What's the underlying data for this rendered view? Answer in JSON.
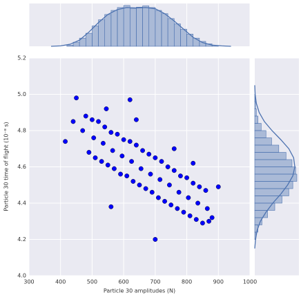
{
  "chart_data": [
    {
      "type": "scatter",
      "x_label": "Particle 30 amplitudes (N)",
      "y_label": "Particle 30 time of flight (10⁻⁸ s)",
      "x": [
        480,
        500,
        520,
        540,
        560,
        580,
        600,
        620,
        640,
        660,
        680,
        700,
        720,
        740,
        760,
        780,
        800,
        820,
        840,
        860,
        490,
        510,
        530,
        550,
        570,
        590,
        610,
        630,
        650,
        670,
        690,
        710,
        730,
        750,
        770,
        790,
        810,
        830,
        850,
        870,
        470,
        505,
        535,
        565,
        595,
        625,
        655,
        685,
        715,
        745,
        775,
        805,
        835,
        865,
        415,
        450,
        620,
        700,
        900,
        880,
        440,
        560,
        760,
        545,
        640,
        820
      ],
      "y": [
        4.88,
        4.86,
        4.85,
        4.82,
        4.79,
        4.78,
        4.75,
        4.74,
        4.72,
        4.69,
        4.67,
        4.65,
        4.63,
        4.6,
        4.58,
        4.55,
        4.54,
        4.51,
        4.49,
        4.47,
        4.68,
        4.65,
        4.63,
        4.61,
        4.59,
        4.56,
        4.55,
        4.52,
        4.5,
        4.48,
        4.46,
        4.43,
        4.41,
        4.39,
        4.37,
        4.35,
        4.33,
        4.31,
        4.29,
        4.3,
        4.8,
        4.76,
        4.73,
        4.69,
        4.66,
        4.63,
        4.59,
        4.56,
        4.53,
        4.5,
        4.46,
        4.43,
        4.4,
        4.37,
        4.74,
        4.98,
        4.97,
        4.2,
        4.49,
        4.32,
        4.85,
        4.38,
        4.7,
        4.92,
        4.86,
        4.62
      ],
      "color": "#0000ff",
      "edgecolor": "#000000",
      "xlim": [
        300,
        1000
      ],
      "xticks": [
        300,
        400,
        500,
        600,
        700,
        800,
        900,
        1000
      ],
      "ylim": [
        4,
        5.2
      ],
      "yticks": [
        {
          "value": 4,
          "label": "4.0"
        },
        4.2,
        4.4,
        4.6,
        4.8,
        {
          "value": 5,
          "label": "5.0"
        },
        5.2
      ],
      "grid": true
    },
    {
      "type": "histogram",
      "orientation": "vertical",
      "color": "#4c72b0",
      "bins": [
        420,
        440,
        460,
        480,
        500,
        520,
        540,
        560,
        580,
        600,
        620,
        640,
        660,
        680,
        700,
        720,
        740,
        760,
        780,
        800,
        820,
        840,
        860,
        880,
        900
      ],
      "counts": [
        3,
        10,
        20,
        32,
        50,
        65,
        78,
        88,
        95,
        100,
        93,
        96,
        99,
        95,
        88,
        80,
        68,
        55,
        42,
        30,
        20,
        12,
        6,
        2
      ],
      "kde_x": [
        370,
        400,
        430,
        460,
        490,
        520,
        550,
        580,
        610,
        640,
        670,
        700,
        730,
        760,
        790,
        820,
        850,
        880,
        910,
        940
      ],
      "kde_values": [
        0,
        1,
        5,
        15,
        35,
        58,
        78,
        90,
        95,
        94,
        95,
        92,
        80,
        62,
        42,
        22,
        9,
        3,
        1,
        0
      ]
    },
    {
      "type": "histogram",
      "orientation": "horizontal",
      "color": "#4c72b0",
      "bins": [
        4.2,
        4.24,
        4.28,
        4.32,
        4.36,
        4.4,
        4.44,
        4.48,
        4.52,
        4.56,
        4.6,
        4.64,
        4.68,
        4.72,
        4.76,
        4.8,
        4.84,
        4.88,
        4.92,
        4.96,
        5.0
      ],
      "counts": [
        3,
        8,
        18,
        32,
        50,
        68,
        85,
        95,
        105,
        102,
        93,
        78,
        60,
        42,
        28,
        16,
        8,
        4,
        2,
        1
      ],
      "kde_x": [
        4.15,
        4.2,
        4.25,
        4.3,
        4.35,
        4.4,
        4.45,
        4.5,
        4.55,
        4.6,
        4.65,
        4.7,
        4.75,
        4.8,
        4.85,
        4.9,
        4.95,
        5.0,
        5.05
      ],
      "kde_values": [
        0,
        2,
        6,
        14,
        28,
        45,
        65,
        82,
        95,
        100,
        97,
        85,
        65,
        43,
        24,
        11,
        4,
        1,
        0
      ]
    }
  ]
}
